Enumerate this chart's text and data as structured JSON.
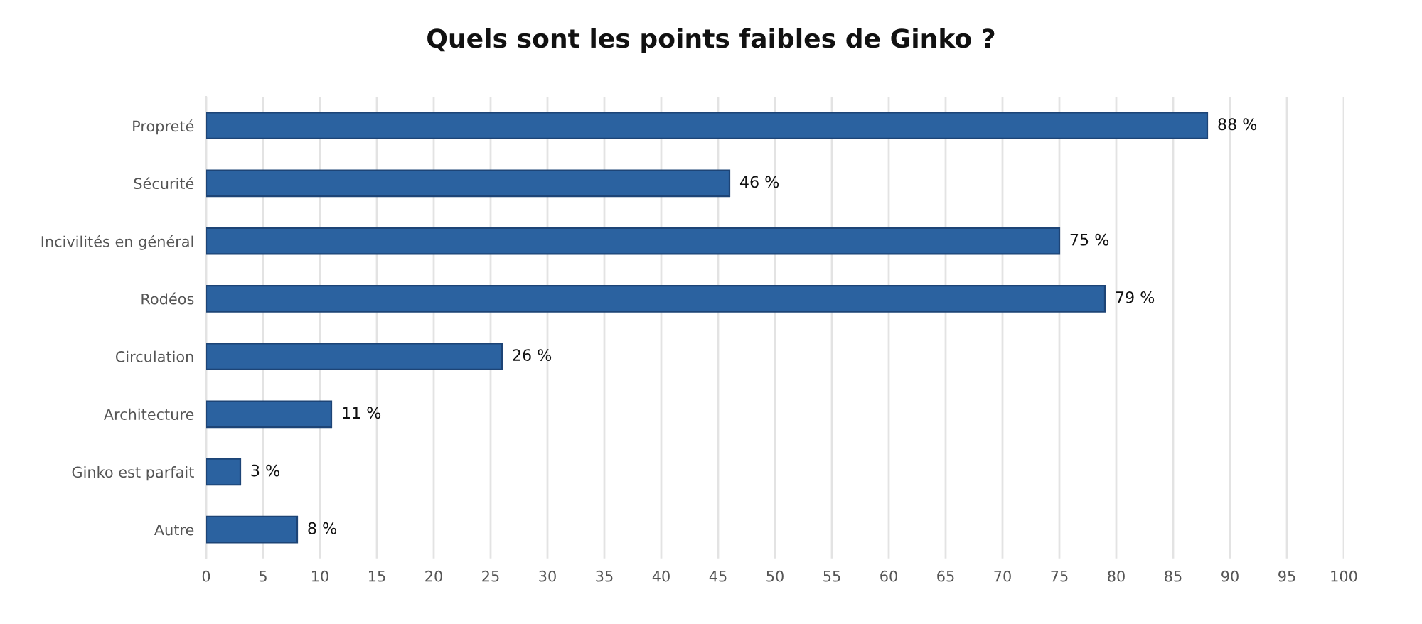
{
  "chart_data": {
    "type": "bar",
    "orientation": "horizontal",
    "title": "Quels sont les points faibles de Ginko ?",
    "categories": [
      "Propreté",
      "Sécurité",
      "Incivilités en général",
      "Rodéos",
      "Circulation",
      "Architecture",
      "Ginko est parfait",
      "Autre"
    ],
    "values": [
      88,
      46,
      75,
      79,
      26,
      11,
      3,
      8
    ],
    "value_labels": [
      "88 %",
      "46 %",
      "75 %",
      "79 %",
      "26 %",
      "11 %",
      "3 %",
      "8 %"
    ],
    "color": "#2b62a0",
    "xlim": [
      0,
      100
    ],
    "xticks": [
      0,
      5,
      10,
      15,
      20,
      25,
      30,
      35,
      40,
      45,
      50,
      55,
      60,
      65,
      70,
      75,
      80,
      85,
      90,
      95,
      100
    ],
    "grid": "x",
    "legend": false
  }
}
